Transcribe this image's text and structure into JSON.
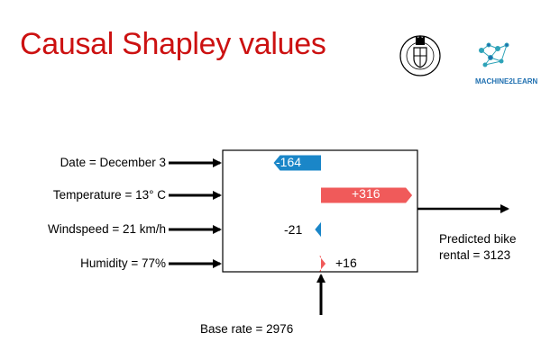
{
  "slide": {
    "title": "Causal Shapley values",
    "logo_right_text": "MACHINE2LEARN",
    "logo_left_text": "IN DEI NOMINE FELICITER"
  },
  "colors": {
    "title": "#cc1111",
    "negative": "#1a86c8",
    "positive": "#f05a5a",
    "arrow": "#000000",
    "logo_blue": "#1e6fb0"
  },
  "inputs": [
    {
      "label": "Date = December 3"
    },
    {
      "label": "Temperature = 13° C"
    },
    {
      "label": "Windspeed = 21 km/h"
    },
    {
      "label": "Humidity = 77%"
    }
  ],
  "contributions": [
    {
      "feature": "Date",
      "value": -164,
      "label": "-164"
    },
    {
      "feature": "Temperature",
      "value": 316,
      "label": "+316"
    },
    {
      "feature": "Windspeed",
      "value": -21,
      "label": "-21"
    },
    {
      "feature": "Humidity",
      "value": 16,
      "label": "+16"
    }
  ],
  "output": {
    "line1": "Predicted bike",
    "line2": "rental = 3123"
  },
  "base": {
    "label": "Base rate = 2976"
  }
}
